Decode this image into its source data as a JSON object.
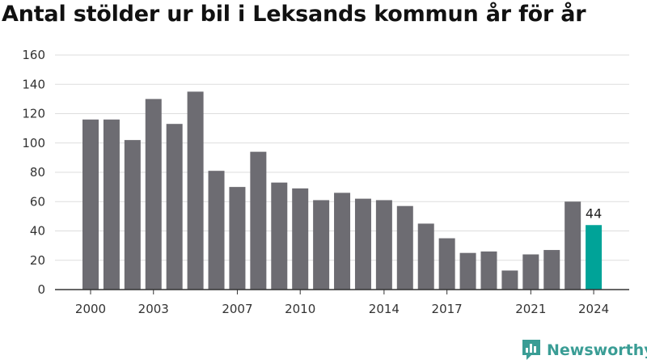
{
  "title": "Antal stölder ur bil i Leksands kommun år för år",
  "brand": {
    "name": "Newsworthy",
    "icon": "bar-chart-speech-bubble-icon",
    "color": "#3a9d95"
  },
  "colors": {
    "bar": "#6d6c72",
    "highlight": "#00a398",
    "grid": "#dddddd",
    "axis": "#333333"
  },
  "chart_data": {
    "type": "bar",
    "categories": [
      "2000",
      "2001",
      "2002",
      "2003",
      "2004",
      "2005",
      "2006",
      "2007",
      "2008",
      "2009",
      "2010",
      "2011",
      "2012",
      "2013",
      "2014",
      "2015",
      "2016",
      "2017",
      "2018",
      "2019",
      "2020",
      "2021",
      "2022",
      "2023",
      "2024"
    ],
    "values": [
      116,
      116,
      102,
      130,
      113,
      135,
      81,
      70,
      94,
      73,
      69,
      61,
      66,
      62,
      61,
      57,
      45,
      35,
      25,
      26,
      13,
      24,
      27,
      60,
      44
    ],
    "x_tick_labels": [
      "2000",
      "2003",
      "2007",
      "2010",
      "2014",
      "2017",
      "2021",
      "2024"
    ],
    "y_ticks": [
      0,
      20,
      40,
      60,
      80,
      100,
      120,
      140,
      160
    ],
    "ylim": [
      0,
      160
    ],
    "highlight_category": "2024",
    "data_labels": [
      {
        "category": "2024",
        "text": "44"
      }
    ],
    "grid": true,
    "xlabel": "",
    "ylabel": ""
  }
}
